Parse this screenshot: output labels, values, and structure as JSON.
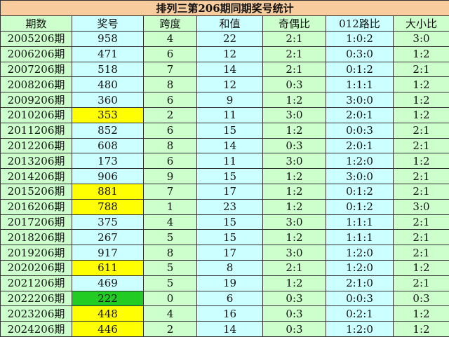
{
  "title": "排列三第206期同期奖号统计",
  "headers": [
    "期数",
    "奖号",
    "跨度",
    "和值",
    "奇偶比",
    "012路比",
    "大小比"
  ],
  "highlight_colors": {
    "yellow": "#ffff00",
    "green": "#22cc22"
  },
  "rows": [
    {
      "period": "2005206期",
      "number": "958",
      "span": "4",
      "sum": "22",
      "odd_even": "2:1",
      "route012": "1:0:2",
      "big_small": "3:0",
      "highlight": ""
    },
    {
      "period": "2006206期",
      "number": "471",
      "span": "6",
      "sum": "12",
      "odd_even": "2:1",
      "route012": "0:3:0",
      "big_small": "1:2",
      "highlight": ""
    },
    {
      "period": "2007206期",
      "number": "518",
      "span": "7",
      "sum": "14",
      "odd_even": "2:1",
      "route012": "0:1:2",
      "big_small": "2:1",
      "highlight": ""
    },
    {
      "period": "2008206期",
      "number": "480",
      "span": "8",
      "sum": "12",
      "odd_even": "0:3",
      "route012": "1:1:1",
      "big_small": "1:2",
      "highlight": ""
    },
    {
      "period": "2009206期",
      "number": "360",
      "span": "6",
      "sum": "9",
      "odd_even": "1:2",
      "route012": "3:0:0",
      "big_small": "1:2",
      "highlight": ""
    },
    {
      "period": "2010206期",
      "number": "353",
      "span": "2",
      "sum": "11",
      "odd_even": "3:0",
      "route012": "2:0:1",
      "big_small": "1:2",
      "highlight": "yellow"
    },
    {
      "period": "2011206期",
      "number": "852",
      "span": "6",
      "sum": "15",
      "odd_even": "1:2",
      "route012": "0:0:3",
      "big_small": "2:1",
      "highlight": ""
    },
    {
      "period": "2012206期",
      "number": "608",
      "span": "8",
      "sum": "14",
      "odd_even": "0:3",
      "route012": "2:0:1",
      "big_small": "2:1",
      "highlight": ""
    },
    {
      "period": "2013206期",
      "number": "173",
      "span": "6",
      "sum": "11",
      "odd_even": "3:0",
      "route012": "1:2:0",
      "big_small": "1:2",
      "highlight": ""
    },
    {
      "period": "2014206期",
      "number": "906",
      "span": "9",
      "sum": "15",
      "odd_even": "1:2",
      "route012": "3:0:0",
      "big_small": "2:1",
      "highlight": ""
    },
    {
      "period": "2015206期",
      "number": "881",
      "span": "7",
      "sum": "17",
      "odd_even": "1:2",
      "route012": "0:1:2",
      "big_small": "2:1",
      "highlight": "yellow"
    },
    {
      "period": "2016206期",
      "number": "788",
      "span": "1",
      "sum": "23",
      "odd_even": "1:2",
      "route012": "0:1:2",
      "big_small": "3:0",
      "highlight": "yellow"
    },
    {
      "period": "2017206期",
      "number": "375",
      "span": "4",
      "sum": "15",
      "odd_even": "3:0",
      "route012": "1:1:1",
      "big_small": "2:1",
      "highlight": ""
    },
    {
      "period": "2018206期",
      "number": "267",
      "span": "5",
      "sum": "15",
      "odd_even": "1:2",
      "route012": "1:1:1",
      "big_small": "2:1",
      "highlight": ""
    },
    {
      "period": "2019206期",
      "number": "917",
      "span": "8",
      "sum": "17",
      "odd_even": "3:0",
      "route012": "1:2:0",
      "big_small": "2:1",
      "highlight": ""
    },
    {
      "period": "2020206期",
      "number": "611",
      "span": "5",
      "sum": "8",
      "odd_even": "2:1",
      "route012": "1:2:0",
      "big_small": "1:2",
      "highlight": "yellow"
    },
    {
      "period": "2021206期",
      "number": "469",
      "span": "5",
      "sum": "19",
      "odd_even": "1:2",
      "route012": "2:1:0",
      "big_small": "2:1",
      "highlight": ""
    },
    {
      "period": "2022206期",
      "number": "222",
      "span": "0",
      "sum": "6",
      "odd_even": "0:3",
      "route012": "0:0:3",
      "big_small": "0:3",
      "highlight": "green"
    },
    {
      "period": "2023206期",
      "number": "448",
      "span": "4",
      "sum": "16",
      "odd_even": "0:3",
      "route012": "0:2:1",
      "big_small": "1:2",
      "highlight": "yellow"
    },
    {
      "period": "2024206期",
      "number": "446",
      "span": "2",
      "sum": "14",
      "odd_even": "0:3",
      "route012": "1:2:0",
      "big_small": "1:2",
      "highlight": "yellow"
    }
  ]
}
